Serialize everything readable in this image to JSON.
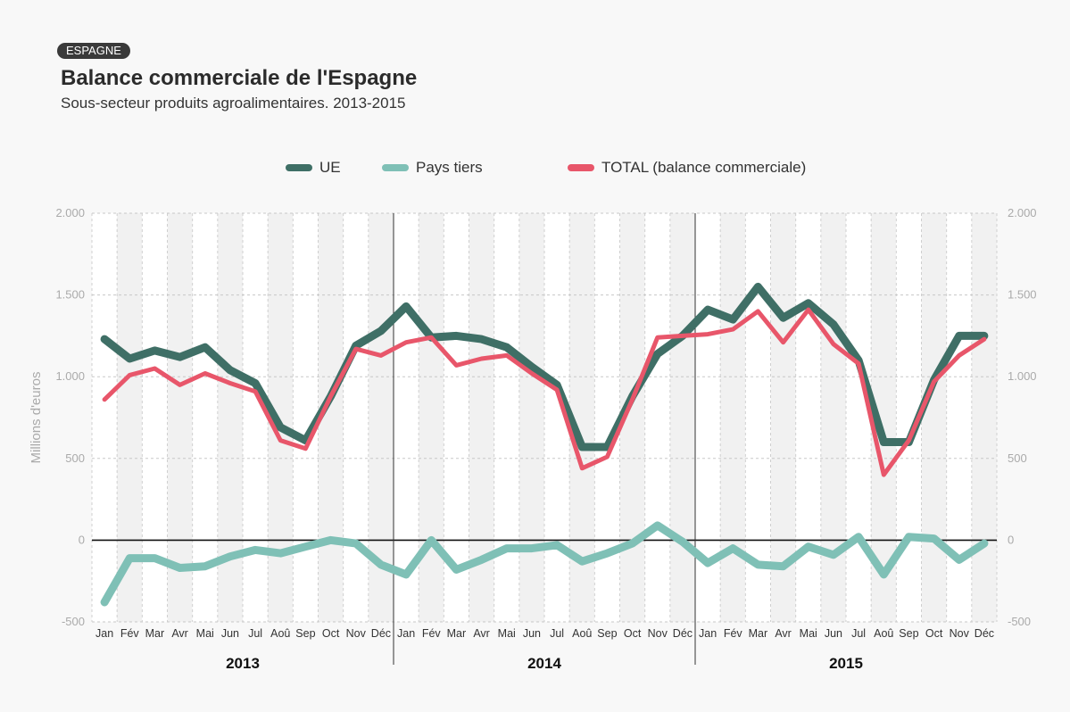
{
  "header": {
    "badge": "ESPAGNE",
    "title": "Balance commerciale de l'Espagne",
    "subtitle": "Sous-secteur produits agroalimentaires.  2013-2015"
  },
  "legend": [
    {
      "label": "UE",
      "color": "#3f6f66"
    },
    {
      "label": "Pays tiers",
      "color": "#7fc0b6"
    },
    {
      "label": "TOTAL  (balance commerciale)",
      "color": "#e8566a"
    }
  ],
  "chart_data": {
    "type": "line",
    "ylabel": "Millions d'euros",
    "ylim": [
      -500,
      2000
    ],
    "yticks": [
      -500,
      0,
      500,
      1000,
      1500,
      2000
    ],
    "ytick_labels": [
      "-500",
      "0",
      "500",
      "1.000",
      "1.500",
      "2.000"
    ],
    "months": [
      "Jan",
      "Fév",
      "Mar",
      "Avr",
      "Mai",
      "Jun",
      "Jul",
      "Aoû",
      "Sep",
      "Oct",
      "Nov",
      "Déc",
      "Jan",
      "Fév",
      "Mar",
      "Avr",
      "Mai",
      "Jun",
      "Jul",
      "Aoû",
      "Sep",
      "Oct",
      "Nov",
      "Déc",
      "Jan",
      "Fév",
      "Mar",
      "Avr",
      "Mai",
      "Jun",
      "Jul",
      "Aoû",
      "Sep",
      "Oct",
      "Nov",
      "Déc"
    ],
    "years": [
      "2013",
      "2014",
      "2015"
    ],
    "grid": true,
    "legend_position": "top",
    "series": [
      {
        "name": "UE",
        "color": "#3f6f66",
        "values": [
          1230,
          1110,
          1160,
          1120,
          1180,
          1040,
          960,
          690,
          610,
          880,
          1190,
          1280,
          1430,
          1240,
          1250,
          1230,
          1180,
          1060,
          950,
          570,
          570,
          880,
          1140,
          1250,
          1410,
          1350,
          1550,
          1360,
          1450,
          1320,
          1100,
          600,
          600,
          980,
          1250,
          1250
        ]
      },
      {
        "name": "Pays tiers",
        "color": "#7fc0b6",
        "values": [
          -380,
          -110,
          -110,
          -170,
          -160,
          -100,
          -60,
          -80,
          -40,
          0,
          -20,
          -150,
          -210,
          0,
          -180,
          -120,
          -50,
          -50,
          -30,
          -130,
          -80,
          -20,
          90,
          -10,
          -140,
          -50,
          -150,
          -160,
          -40,
          -90,
          20,
          -210,
          20,
          10,
          -120,
          -20
        ]
      },
      {
        "name": "TOTAL  (balance commerciale)",
        "color": "#e8566a",
        "values": [
          860,
          1010,
          1050,
          950,
          1020,
          960,
          910,
          610,
          560,
          880,
          1170,
          1130,
          1210,
          1240,
          1070,
          1110,
          1130,
          1020,
          920,
          440,
          510,
          860,
          1240,
          1250,
          1260,
          1290,
          1400,
          1210,
          1410,
          1200,
          1080,
          400,
          610,
          970,
          1130,
          1230
        ]
      }
    ]
  }
}
